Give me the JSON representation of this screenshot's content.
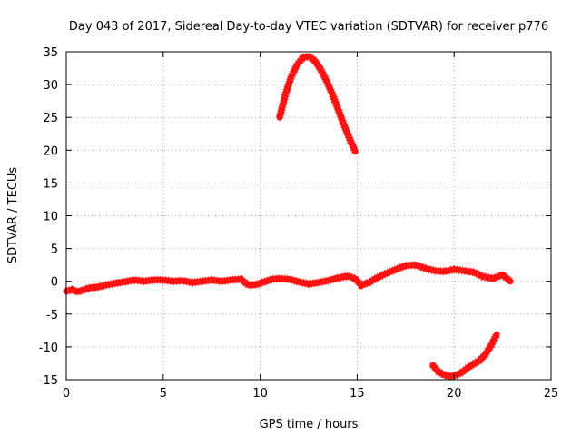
{
  "chart_data": {
    "type": "line",
    "title": "Day 043 of 2017, Sidereal Day-to-day VTEC variation (SDTVAR) for receiver p776",
    "xlabel": "GPS time / hours",
    "ylabel": "SDTVAR / TECUs",
    "xlim": [
      0,
      25
    ],
    "ylim": [
      -15,
      35
    ],
    "x_ticks": [
      0,
      5,
      10,
      15,
      20,
      25
    ],
    "y_ticks": [
      -15,
      -10,
      -5,
      0,
      5,
      10,
      15,
      20,
      25,
      30,
      35
    ],
    "grid": true,
    "series_color": "#ff0000",
    "series": [
      {
        "name": "near-zero trace",
        "x": [
          0.0,
          0.3,
          0.6,
          0.9,
          1.2,
          1.6,
          2.0,
          2.5,
          3.0,
          3.5,
          4.0,
          4.5,
          5.0,
          5.5,
          6.0,
          6.5,
          7.0,
          7.5,
          8.0,
          8.5,
          9.0,
          9.4,
          9.8,
          10.2,
          10.6,
          11.0,
          11.5,
          12.0,
          12.5,
          13.0,
          13.5,
          14.0,
          14.5,
          14.9,
          15.2,
          15.6,
          16.0,
          16.5,
          17.0,
          17.5,
          18.0,
          18.5,
          19.0,
          19.5,
          20.0,
          20.5,
          21.0,
          21.5,
          22.0,
          22.5,
          22.9
        ],
        "y": [
          -1.5,
          -1.3,
          -1.6,
          -1.3,
          -1.0,
          -0.9,
          -0.6,
          -0.3,
          -0.1,
          0.2,
          0.0,
          0.2,
          0.2,
          0.0,
          0.1,
          -0.2,
          0.0,
          0.2,
          0.0,
          0.2,
          0.3,
          -0.6,
          -0.5,
          -0.1,
          0.3,
          0.4,
          0.3,
          -0.1,
          -0.4,
          -0.2,
          0.1,
          0.5,
          0.8,
          0.4,
          -0.6,
          -0.2,
          0.5,
          1.2,
          1.8,
          2.4,
          2.5,
          2.0,
          1.6,
          1.5,
          1.8,
          1.6,
          1.4,
          0.7,
          0.4,
          1.0,
          0.0
        ]
      },
      {
        "name": "arc high",
        "x": [
          11.0,
          11.3,
          11.6,
          11.9,
          12.2,
          12.5,
          12.8,
          13.1,
          13.4,
          13.7,
          14.0,
          14.3,
          14.6,
          14.9
        ],
        "y": [
          25.0,
          28.5,
          31.2,
          33.0,
          34.1,
          34.3,
          33.7,
          32.4,
          30.7,
          28.7,
          26.4,
          24.0,
          21.8,
          19.8
        ]
      },
      {
        "name": "arc low",
        "x": [
          18.9,
          19.2,
          19.5,
          19.8,
          20.1,
          20.4,
          20.7,
          21.0,
          21.3,
          21.6,
          21.9,
          22.2
        ],
        "y": [
          -12.8,
          -13.8,
          -14.3,
          -14.5,
          -14.3,
          -13.9,
          -13.2,
          -12.6,
          -12.1,
          -11.2,
          -9.8,
          -8.1
        ]
      }
    ]
  }
}
